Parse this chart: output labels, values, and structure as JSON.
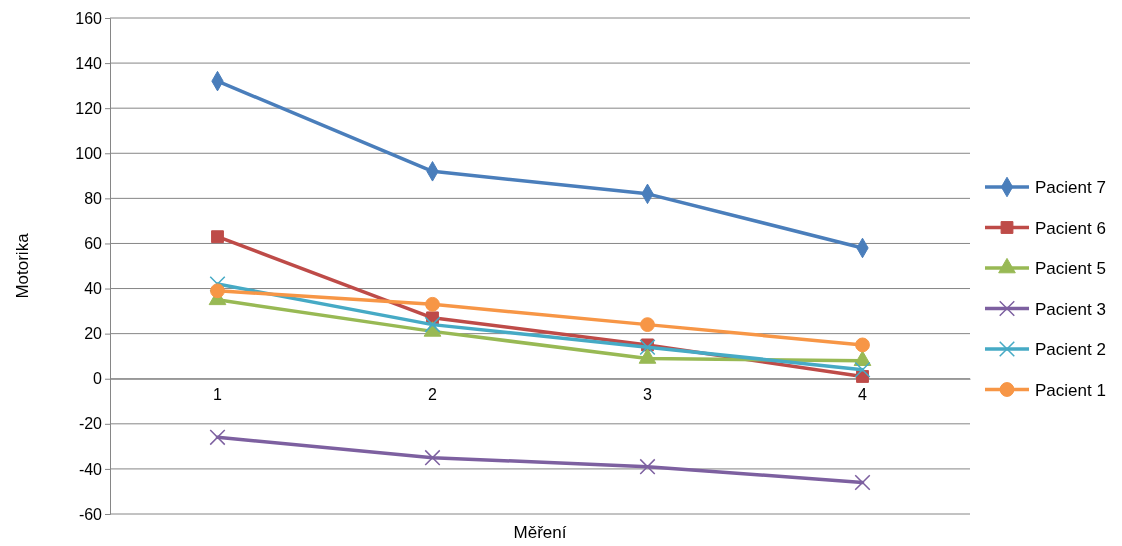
{
  "chart_data": {
    "type": "line",
    "xlabel": "Měření",
    "ylabel": "Motorika",
    "categories": [
      "1",
      "2",
      "3",
      "4"
    ],
    "ylim": [
      -60,
      160
    ],
    "yticks": [
      -60,
      -40,
      -20,
      0,
      20,
      40,
      60,
      80,
      100,
      120,
      140,
      160
    ],
    "grid": "y",
    "legend": "right",
    "series": [
      {
        "name": "Pacient 7",
        "color": "#4a7ebb",
        "marker": "diamond",
        "values": [
          132,
          92,
          82,
          58
        ]
      },
      {
        "name": "Pacient 6",
        "color": "#be4b48",
        "marker": "square",
        "values": [
          63,
          27,
          15,
          1
        ]
      },
      {
        "name": "Pacient 5",
        "color": "#98b954",
        "marker": "triangle",
        "values": [
          35,
          21,
          9,
          8
        ]
      },
      {
        "name": "Pacient 3",
        "color": "#7d60a0",
        "marker": "cross",
        "values": [
          -26,
          -35,
          -39,
          -46
        ]
      },
      {
        "name": "Pacient 2",
        "color": "#46aac5",
        "marker": "cross",
        "values": [
          42,
          24,
          14,
          4
        ]
      },
      {
        "name": "Pacient 1",
        "color": "#f79646",
        "marker": "circle",
        "values": [
          39,
          33,
          24,
          15
        ]
      }
    ]
  }
}
